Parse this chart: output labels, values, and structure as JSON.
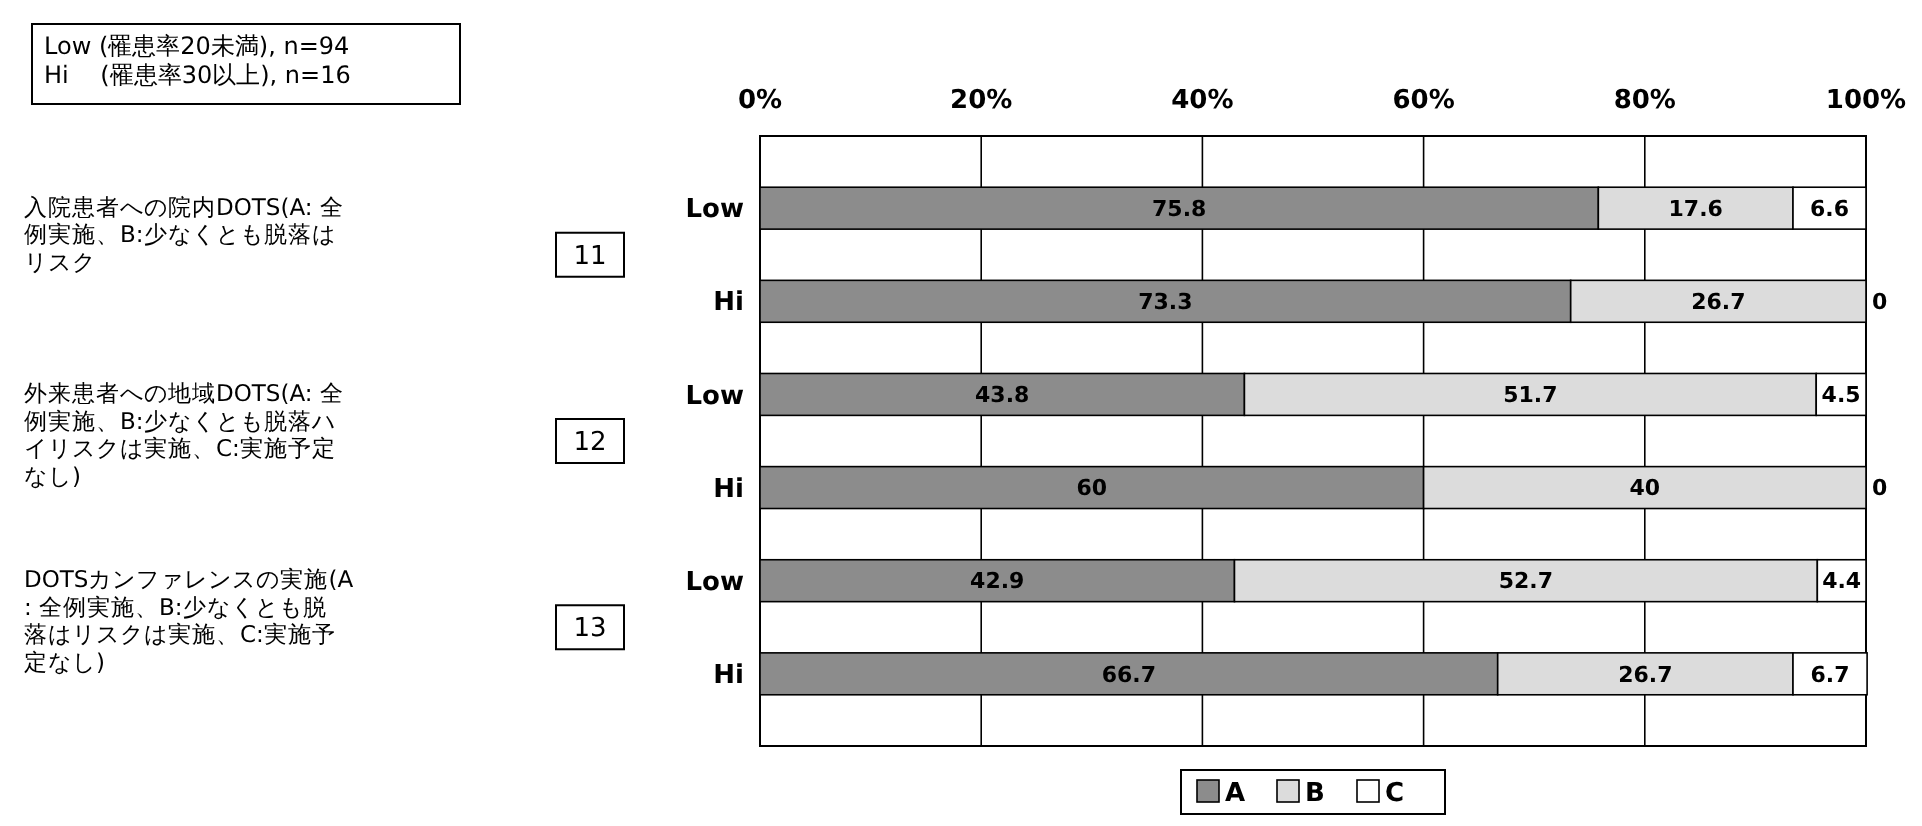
{
  "chart_data": {
    "type": "bar",
    "orientation": "horizontal",
    "stacked": true,
    "categories": [
      "Low",
      "Hi",
      "Low",
      "Hi",
      "Low",
      "Hi"
    ],
    "series": [
      {
        "name": "A",
        "color": "#8c8c8c",
        "values": [
          75.8,
          73.3,
          43.8,
          60,
          42.9,
          66.7
        ]
      },
      {
        "name": "B",
        "color": "#dcdcdc",
        "values": [
          17.6,
          26.7,
          51.7,
          40,
          52.7,
          26.7
        ]
      },
      {
        "name": "C",
        "color": "#ffffff",
        "values": [
          6.6,
          0,
          4.5,
          0,
          4.4,
          6.7
        ]
      }
    ],
    "xlim": [
      0,
      100
    ],
    "xticks": [
      {
        "value": 0,
        "label": "0%"
      },
      {
        "value": 20,
        "label": "20%"
      },
      {
        "value": 40,
        "label": "40%"
      },
      {
        "value": 60,
        "label": "60%"
      },
      {
        "value": 80,
        "label": "80%"
      },
      {
        "value": 100,
        "label": "100%"
      }
    ],
    "grid": "x",
    "legend": "bottom",
    "data_labels": true,
    "annotations": [
      "Low (罹患率20未満), n=94\nHi　 (罹患率30以上), n=16",
      "入院患者への院内DOTS(A: 全例実施、B:少なくとも脱落はリスク",
      "外来患者への地域DOTS(A: 全例実施、B:少なくとも脱落ハイリスクは実施、C:実施予定なし)",
      "DOTSカンファレンスの実施(A: 全例実施、B:少なくとも脱落はリスクは実施、C:実施予定なし)",
      "11",
      "12",
      "13"
    ]
  }
}
